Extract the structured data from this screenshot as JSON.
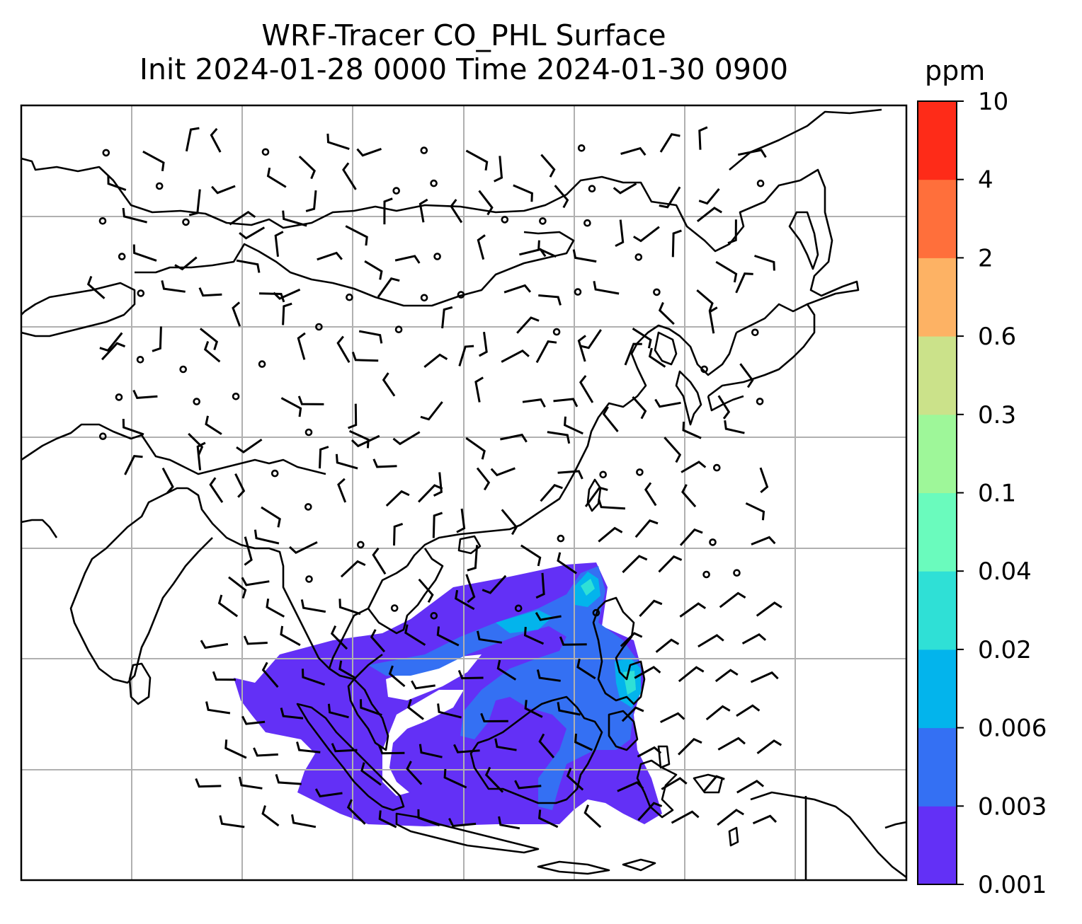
{
  "title": {
    "line1": "WRF-Tracer CO_PHL Surface",
    "line2": "Init 2024-01-28 0000 Time 2024-01-30 0900"
  },
  "map": {
    "gridlines": true,
    "coastline_color": "#000000",
    "grid_color": "#b0b0b0",
    "wind_barb_color": "#000000",
    "calm_marker": "circle",
    "tracer_plume_region": "South China Sea / Philippines / Borneo / Sumatra",
    "dominant_plume_level": "0.001-0.003 ppm",
    "secondary_plume_level": "0.003-0.006 ppm",
    "peak_plume_level": "0.006-0.04 ppm near Philippines"
  },
  "colorbar": {
    "unit": "ppm",
    "levels": [
      "0.001",
      "0.003",
      "0.006",
      "0.02",
      "0.04",
      "0.1",
      "0.3",
      "0.6",
      "2",
      "4",
      "10"
    ],
    "colors": [
      "#6330f6",
      "#3470f3",
      "#03b4ec",
      "#2fe0d6",
      "#6afbbd",
      "#9ef799",
      "#cbe28a",
      "#fdb264",
      "#ff6f3b",
      "#fe2b18"
    ]
  }
}
